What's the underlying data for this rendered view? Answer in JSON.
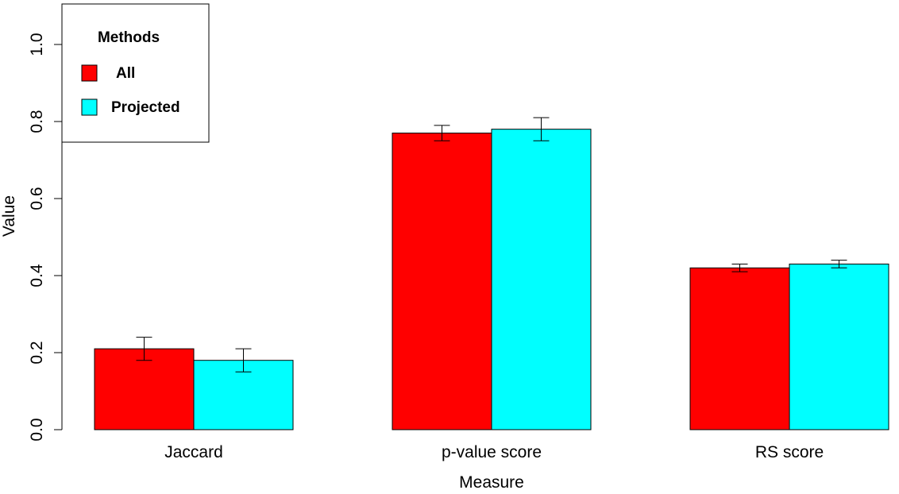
{
  "chart_data": {
    "type": "bar",
    "categories": [
      "Jaccard",
      "p-value score",
      "RS score"
    ],
    "series": [
      {
        "name": "All",
        "color": "#ff0000",
        "values": [
          0.21,
          0.77,
          0.42
        ],
        "error_low": [
          0.18,
          0.75,
          0.41
        ],
        "error_high": [
          0.24,
          0.79,
          0.43
        ]
      },
      {
        "name": "Projected",
        "color": "#00ffff",
        "values": [
          0.18,
          0.78,
          0.43
        ],
        "error_low": [
          0.15,
          0.75,
          0.42
        ],
        "error_high": [
          0.21,
          0.81,
          0.44
        ]
      }
    ],
    "xlabel": "Measure",
    "ylabel": "Value",
    "ylim": [
      0,
      1.0
    ],
    "yticks": [
      "0.0",
      "0.2",
      "0.4",
      "0.6",
      "0.8",
      "1.0"
    ],
    "legend": {
      "title": "Methods",
      "entries": [
        "All",
        "Projected"
      ],
      "position": "top-left"
    },
    "grid": false
  }
}
